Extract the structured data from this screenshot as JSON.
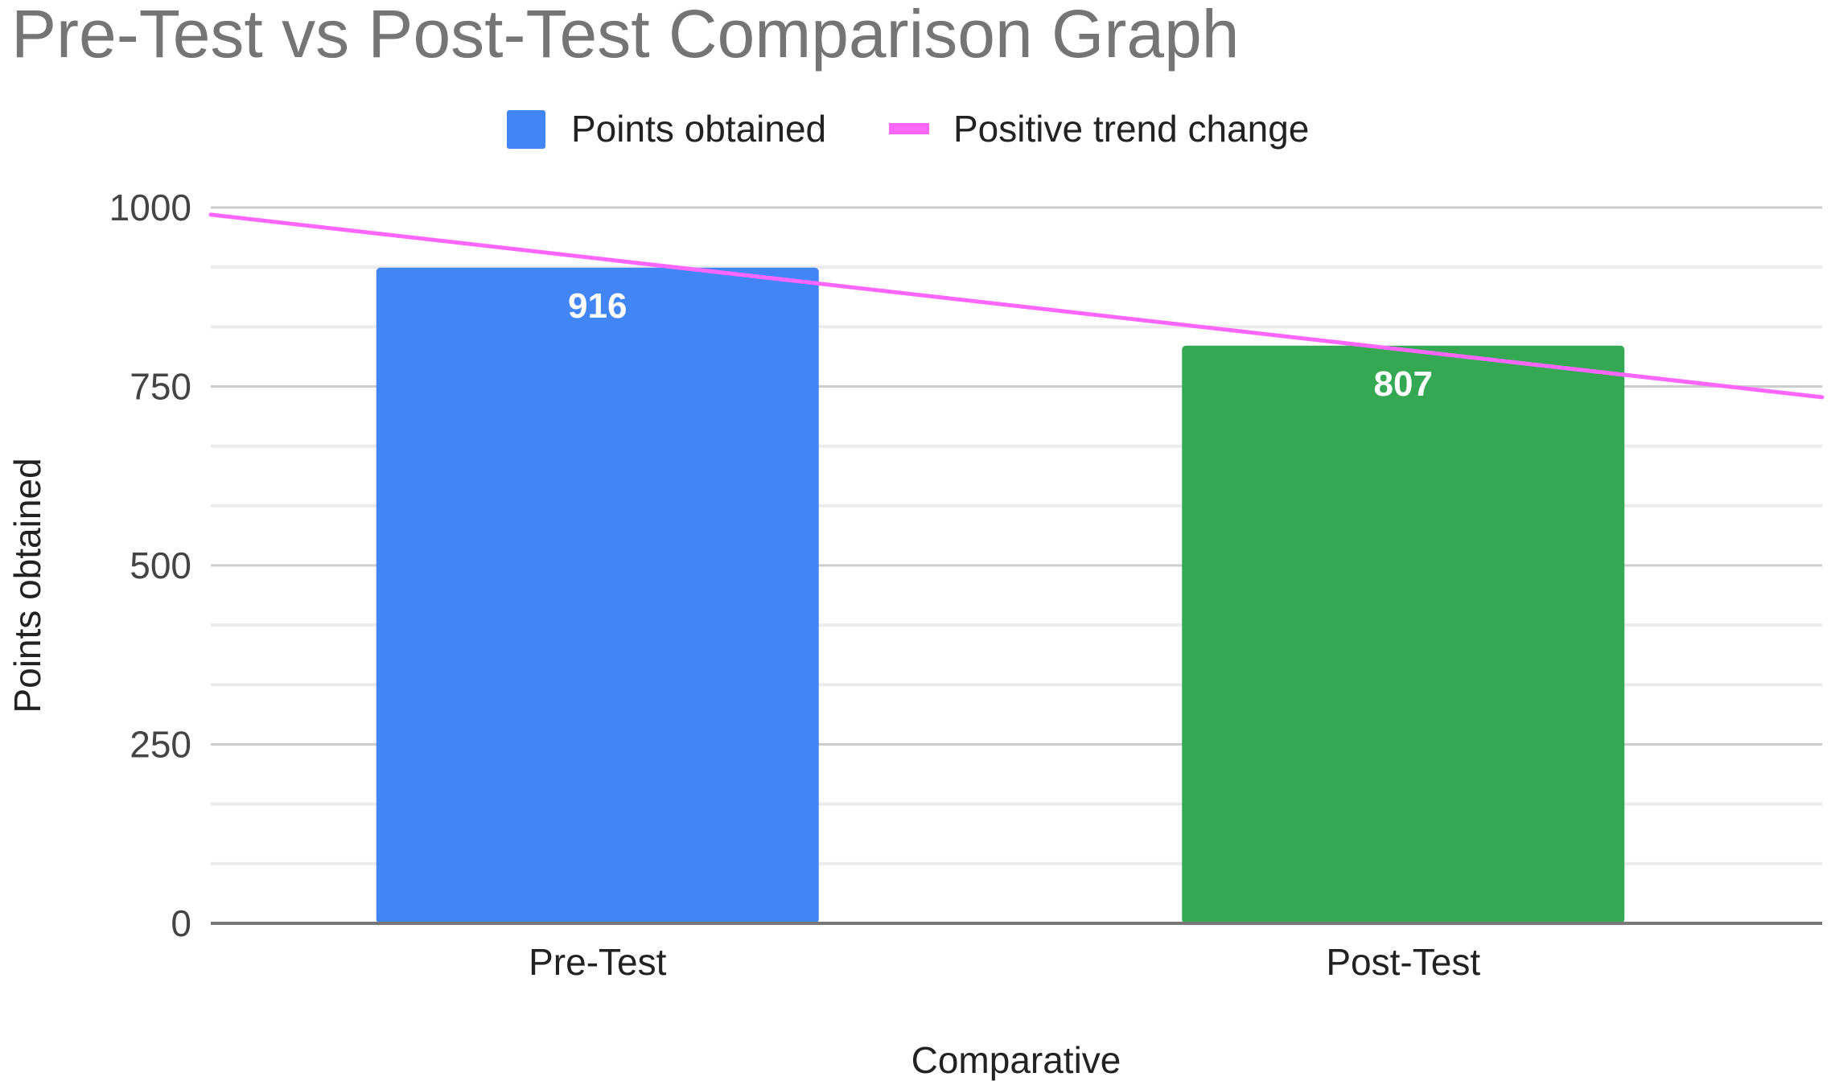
{
  "chart_data": {
    "type": "bar",
    "title": "Pre-Test vs Post-Test Comparison Graph",
    "xlabel": "Comparative",
    "ylabel": "Points obtained",
    "categories": [
      "Pre-Test",
      "Post-Test"
    ],
    "series": [
      {
        "name": "Points obtained",
        "values": [
          916,
          807
        ],
        "colors": [
          "#4285f4",
          "#34a853"
        ]
      }
    ],
    "trendline": {
      "name": "Positive trend change",
      "color": "#ff66ff",
      "values": [
        990,
        735
      ]
    },
    "ylim": [
      0,
      1000
    ],
    "yticks": [
      0,
      250,
      500,
      750,
      1000
    ],
    "grid": true,
    "legend": "top",
    "data_labels": [
      "916",
      "807"
    ]
  }
}
